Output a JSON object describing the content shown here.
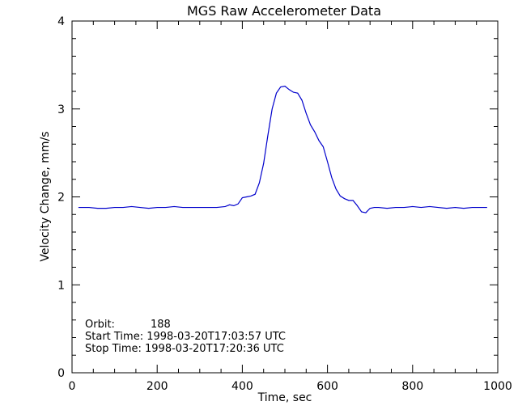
{
  "chart_data": {
    "type": "line",
    "title": "MGS Raw Accelerometer Data",
    "xlabel": "Time, sec",
    "ylabel": "Velocity Change, mm/s",
    "xlim": [
      0,
      1000
    ],
    "ylim": [
      0,
      4
    ],
    "xticks": [
      0,
      200,
      400,
      600,
      800,
      1000
    ],
    "yticks": [
      0,
      1,
      2,
      3,
      4
    ],
    "grid": false,
    "series_color": "#0000cc",
    "annotations": {
      "orbit_label": "Orbit:",
      "orbit_value": "188",
      "start_time": "Start Time: 1998-03-20T17:03:57 UTC",
      "stop_time": "Stop Time: 1998-03-20T17:20:36 UTC"
    },
    "series": [
      {
        "x": [
          15,
          40,
          60,
          80,
          100,
          120,
          140,
          160,
          180,
          200,
          220,
          240,
          260,
          280,
          300,
          320,
          340,
          360,
          370,
          380,
          390,
          400,
          410,
          420,
          430,
          440,
          450,
          460,
          470,
          480,
          490,
          500,
          510,
          520,
          530,
          540,
          550,
          560,
          570,
          580,
          590,
          600,
          610,
          620,
          630,
          640,
          650,
          660,
          670,
          680,
          690,
          700,
          710,
          720,
          740,
          760,
          780,
          800,
          820,
          840,
          860,
          880,
          900,
          920,
          940,
          960,
          975
        ],
        "y": [
          1.88,
          1.88,
          1.87,
          1.87,
          1.88,
          1.88,
          1.89,
          1.88,
          1.87,
          1.88,
          1.88,
          1.89,
          1.88,
          1.88,
          1.88,
          1.88,
          1.88,
          1.89,
          1.91,
          1.9,
          1.92,
          1.99,
          2.0,
          2.01,
          2.03,
          2.16,
          2.38,
          2.7,
          3.0,
          3.18,
          3.25,
          3.26,
          3.22,
          3.19,
          3.18,
          3.1,
          2.95,
          2.82,
          2.74,
          2.64,
          2.57,
          2.4,
          2.22,
          2.09,
          2.01,
          1.98,
          1.96,
          1.96,
          1.9,
          1.83,
          1.82,
          1.87,
          1.88,
          1.88,
          1.87,
          1.88,
          1.88,
          1.89,
          1.88,
          1.89,
          1.88,
          1.87,
          1.88,
          1.87,
          1.88,
          1.88,
          1.88
        ]
      }
    ]
  }
}
